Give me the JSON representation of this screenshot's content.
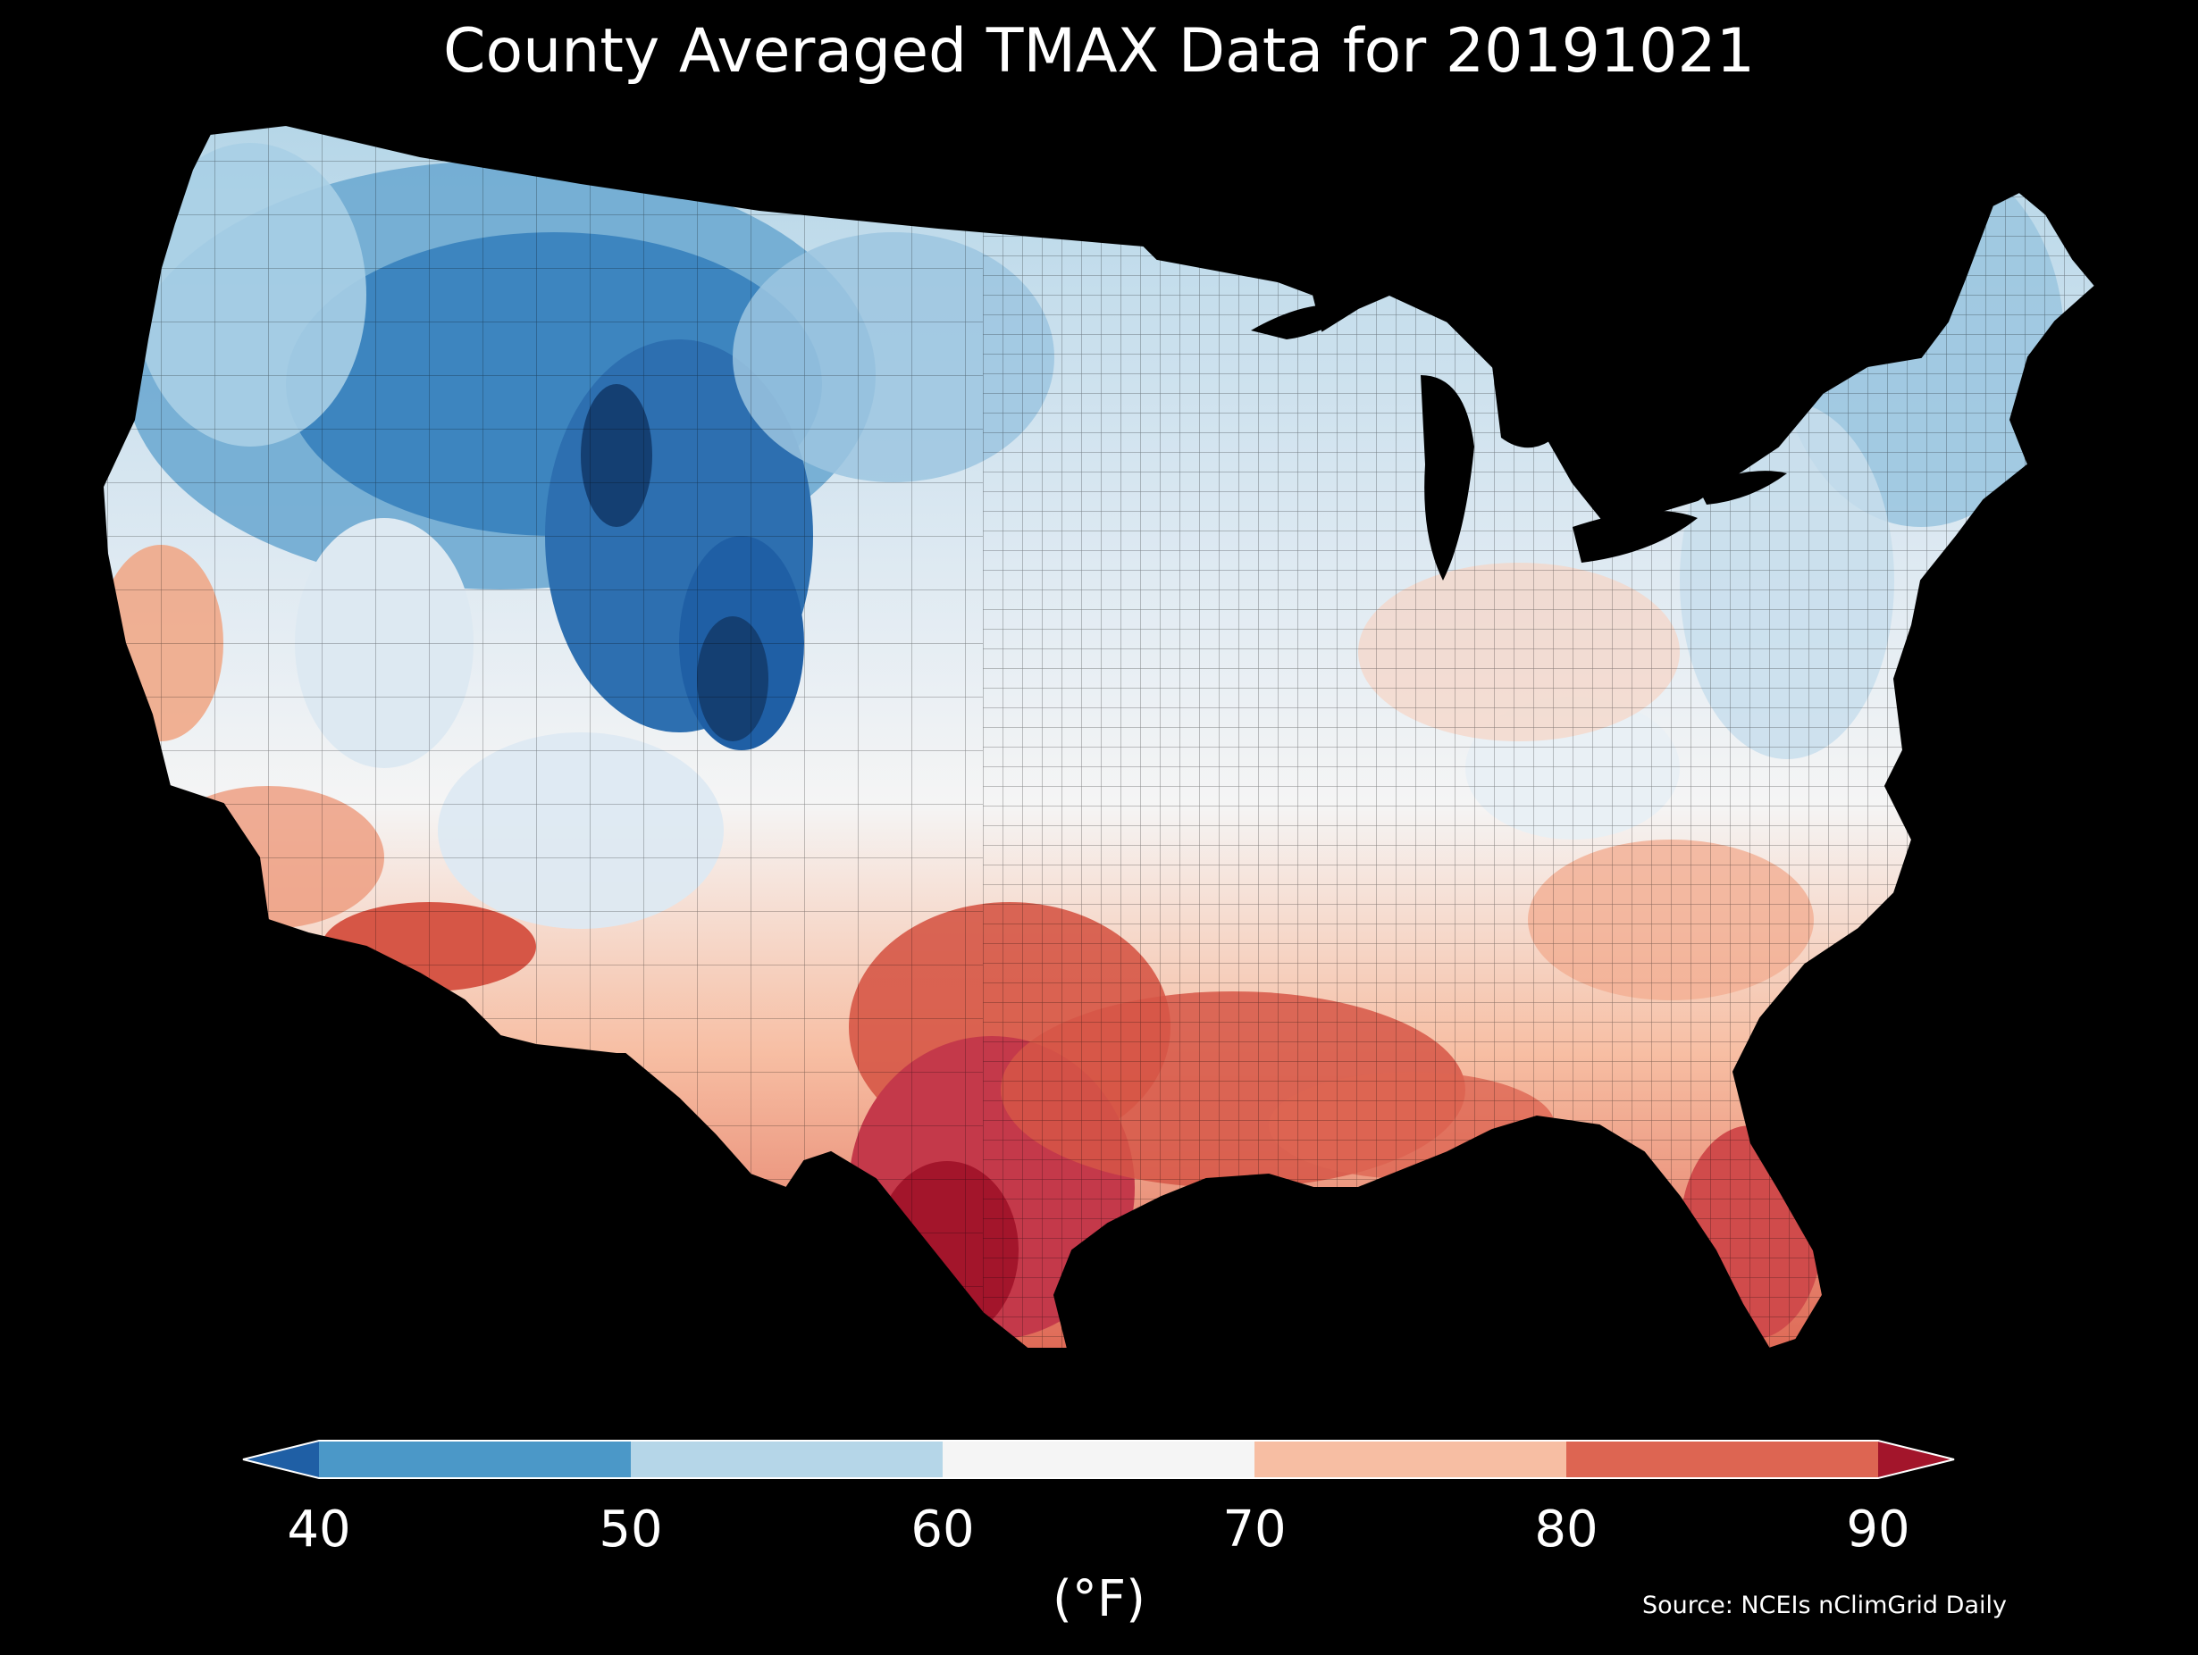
{
  "title": "County Averaged TMAX Data for 20191021",
  "source": "Source: NCEIs nClimGrid Daily",
  "legend": {
    "unit": "(°F)",
    "ticks": [
      "40",
      "50",
      "60",
      "70",
      "80",
      "90"
    ],
    "bins": [
      {
        "range": "<40",
        "color": "#1f5fa5"
      },
      {
        "range": "40-50",
        "color": "#4b98c8"
      },
      {
        "range": "50-60",
        "color": "#b5d6e8"
      },
      {
        "range": "60-70",
        "color": "#f5f5f5"
      },
      {
        "range": "70-80",
        "color": "#f7bea3"
      },
      {
        "range": "80-90",
        "color": "#dd6552"
      },
      {
        "range": ">90",
        "color": "#a3152b"
      }
    ]
  },
  "map": {
    "region": "Contiguous United States, county level",
    "variable": "TMAX",
    "date": "20191021",
    "background": "#000000"
  }
}
